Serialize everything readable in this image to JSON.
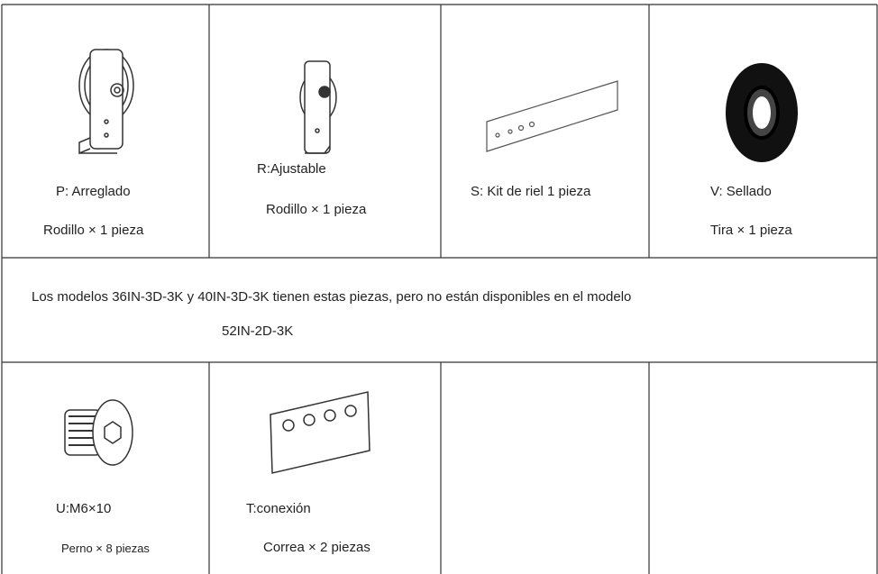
{
  "table": {
    "rows": [
      [
        [
          "P: Arreglado",
          "Rodillo × 1 pieza"
        ],
        [
          "R:Ajustable",
          "Rodillo × 1 pieza"
        ],
        [
          "S: Kit de riel 1 pieza"
        ],
        [
          "V: Sellado",
          "Tira × 1 pieza"
        ]
      ],
      [
        [
          "Los modelos 36IN-3D-3K y 40IN-3D-3K tienen estas piezas, pero no están disponibles en el modelo",
          "52IN-2D-3K"
        ]
      ],
      [
        [
          "U:M6×10",
          "Perno × 8 piezas"
        ],
        [
          "T:conexión",
          "Correa × 2 piezas"
        ]
      ]
    ]
  }
}
